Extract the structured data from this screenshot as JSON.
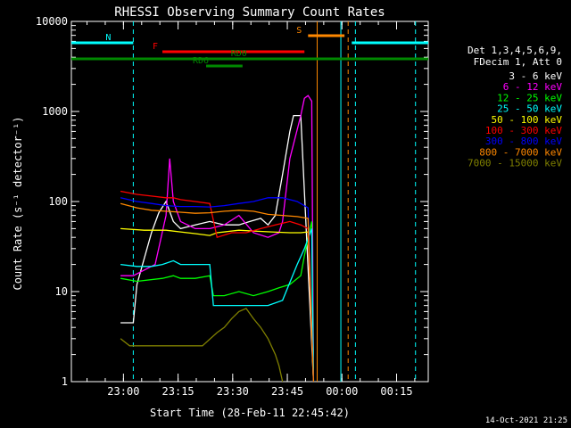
{
  "chart_data": {
    "type": "line",
    "title": "RHESSI Observing Summary Count Rates",
    "xlabel": "Start Time (28-Feb-11 22:45:42)",
    "ylabel": "Count Rate (s⁻¹ detector⁻¹)",
    "ylim": [
      1,
      10000
    ],
    "yscale": "log",
    "xlim_minutes": [
      0,
      98
    ],
    "x_ticks": [
      "23:00",
      "23:15",
      "23:30",
      "23:45",
      "00:00",
      "00:15"
    ],
    "y_ticks": [
      "1",
      "10",
      "100",
      "1000",
      "10000"
    ],
    "legend_header": [
      "Det 1,3,4,5,6,9,",
      "FDecim 1, Att 0"
    ],
    "legend_position": "right",
    "series": [
      {
        "name": "3 - 6 keV",
        "color": "#ffffff",
        "x": [
          13.5,
          17,
          18,
          22,
          24,
          26,
          28,
          30,
          34,
          38,
          42,
          46,
          49,
          52,
          54,
          56,
          58,
          60,
          61,
          62.5,
          63,
          66.5
        ],
        "y": [
          4.5,
          4.5,
          12,
          45,
          75,
          100,
          60,
          50,
          55,
          60,
          55,
          55,
          60,
          65,
          55,
          70,
          200,
          600,
          900,
          900,
          900,
          1
        ]
      },
      {
        "name": "6 - 12 keV",
        "color": "#ff00ff",
        "x": [
          13.5,
          17,
          23,
          26,
          27,
          28,
          30,
          34,
          38,
          42,
          46,
          50,
          54,
          57,
          58,
          60,
          63,
          64,
          65,
          66,
          66.5
        ],
        "y": [
          15,
          15,
          20,
          70,
          300,
          100,
          60,
          50,
          50,
          55,
          70,
          45,
          40,
          45,
          60,
          300,
          900,
          1400,
          1500,
          1300,
          1
        ]
      },
      {
        "name": "12 - 25 keV",
        "color": "#00ff00",
        "x": [
          13.5,
          18,
          25,
          28,
          30,
          34,
          38,
          39,
          42,
          46,
          50,
          54,
          57,
          60,
          63,
          64,
          65,
          66,
          66.5
        ],
        "y": [
          14,
          13,
          14,
          15,
          14,
          14,
          15,
          9,
          9,
          10,
          9,
          10,
          11,
          12,
          15,
          25,
          40,
          60,
          1
        ]
      },
      {
        "name": "25 - 50 keV",
        "color": "#00ffff",
        "x": [
          13.5,
          18,
          22,
          25,
          28,
          30,
          34,
          38,
          39,
          42,
          46,
          50,
          54,
          58,
          62,
          64,
          66,
          66.5
        ],
        "y": [
          20,
          19,
          19,
          20,
          22,
          20,
          20,
          20,
          7,
          7,
          7,
          7,
          7,
          8,
          20,
          30,
          50,
          1
        ]
      },
      {
        "name": "50 - 100 keV",
        "color": "#ffff00",
        "x": [
          13.5,
          20,
          26,
          30,
          34,
          38,
          40,
          46,
          50,
          55,
          60,
          63,
          65,
          66.5
        ],
        "y": [
          50,
          48,
          48,
          46,
          44,
          42,
          45,
          48,
          47,
          46,
          45,
          45,
          46,
          1
        ]
      },
      {
        "name": "100 - 300 keV",
        "color": "#ff0000",
        "x": [
          13.5,
          18,
          22,
          26,
          28,
          30,
          34,
          38,
          40,
          44,
          48,
          52,
          56,
          60,
          63,
          65,
          66.5
        ],
        "y": [
          130,
          120,
          115,
          110,
          110,
          105,
          100,
          95,
          40,
          45,
          45,
          50,
          55,
          60,
          55,
          50,
          1
        ]
      },
      {
        "name": "300 - 800 keV",
        "color": "#0000ff",
        "x": [
          13.5,
          18,
          22,
          26,
          30,
          34,
          38,
          42,
          46,
          50,
          54,
          58,
          62,
          65,
          66.5
        ],
        "y": [
          110,
          100,
          95,
          90,
          88,
          88,
          87,
          90,
          95,
          100,
          110,
          110,
          100,
          85,
          1
        ]
      },
      {
        "name": "800 - 7000 keV",
        "color": "#ff8800",
        "x": [
          13.5,
          18,
          22,
          26,
          30,
          34,
          38,
          42,
          46,
          50,
          54,
          58,
          62,
          65,
          66.5
        ],
        "y": [
          95,
          85,
          80,
          78,
          76,
          74,
          75,
          78,
          80,
          78,
          72,
          70,
          68,
          65,
          1
        ]
      },
      {
        "name": "7000 - 15000 keV",
        "color": "#808000",
        "x": [
          13.5,
          16,
          20,
          25,
          28,
          32,
          36,
          40,
          42,
          44,
          46,
          48,
          50,
          52,
          54,
          56,
          57,
          58
        ],
        "y": [
          3,
          2.5,
          2.5,
          2.5,
          2.5,
          2.5,
          2.5,
          3.5,
          4,
          5,
          6,
          6.5,
          5,
          4,
          3,
          2,
          1.5,
          1
        ]
      }
    ],
    "state_bars": [
      {
        "label": "N",
        "color": "#00ffff",
        "x_start": 0,
        "x_end": 17,
        "level_index": 1
      },
      {
        "label": "F",
        "color": "#ff0000",
        "x_start": 25,
        "x_end": 64,
        "level_index": 2
      },
      {
        "label": "S",
        "color": "#ff8800",
        "x_start": 65,
        "x_end": 75,
        "level_index": 0
      },
      {
        "label": "",
        "color": "#00ffff",
        "x_start": 77,
        "x_end": 98,
        "level_index": 1
      },
      {
        "label": "RD0",
        "color": "#008800",
        "x_start": 0,
        "x_end": 98,
        "level_index": 3
      },
      {
        "label": "RD6",
        "color": "#008800",
        "x_start": 37,
        "x_end": 47,
        "level_index": 4
      }
    ],
    "vertical_markers": [
      {
        "x": 17,
        "color": "#00ffff",
        "dashed": true
      },
      {
        "x": 74,
        "color": "#00ffff",
        "dashed": false
      },
      {
        "x": 78,
        "color": "#00ffff",
        "dashed": true
      },
      {
        "x": 94.5,
        "color": "#00ffff",
        "dashed": true
      },
      {
        "x": 67.5,
        "color": "#ff8800",
        "dashed": false
      },
      {
        "x": 76,
        "color": "#ff8800",
        "dashed": true
      }
    ]
  },
  "footer_timestamp": "14-Oct-2021 21:25"
}
